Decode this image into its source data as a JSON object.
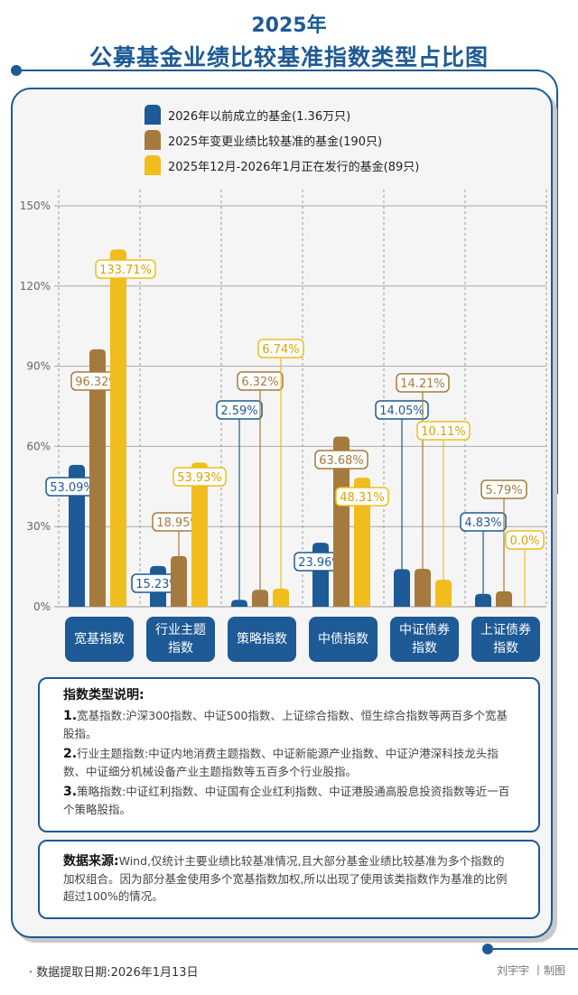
{
  "title": {
    "line1": "2025年",
    "line2": "公募基金业绩比较基准指数类型占比图"
  },
  "chart_data": {
    "type": "bar",
    "categories": [
      "宽基指数",
      "行业主题指数",
      "策略指数",
      "中债指数",
      "中证债券指数",
      "上证债券指数"
    ],
    "series": [
      {
        "name": "2026年以前成立的基金(1.36万只)",
        "color": "#1d5a96",
        "values": [
          53.09,
          15.23,
          2.59,
          23.96,
          14.05,
          4.83
        ],
        "labels": [
          "53.09%",
          "15.23%",
          "2.59%",
          "23.96%",
          "14.05%",
          "4.83%"
        ]
      },
      {
        "name": "2025年变更业绩比较基准的基金(190只)",
        "color": "#a57a3e",
        "values": [
          96.32,
          18.95,
          6.32,
          63.68,
          14.21,
          5.79
        ],
        "labels": [
          "96.32%",
          "18.95%",
          "6.32%",
          "63.68%",
          "14.21%",
          "5.79%"
        ]
      },
      {
        "name": "2025年12月-2026年1月正在发行的基金(89只)",
        "color": "#f0bd1c",
        "values": [
          133.71,
          53.93,
          6.74,
          48.31,
          10.11,
          0.0
        ],
        "labels": [
          "133.71%",
          "53.93%",
          "6.74%",
          "48.31%",
          "10.11%",
          "0.0%"
        ]
      }
    ],
    "yticks": [
      "0%",
      "30%",
      "60%",
      "90%",
      "120%",
      "150%"
    ],
    "ylim": [
      0,
      150
    ],
    "grid": true,
    "legend": "top"
  },
  "notes": {
    "heading": "指数类型说明:",
    "items": [
      {
        "num": "1.",
        "text": "宽基指数:沪深300指数、中证500指数、上证综合指数、恒生综合指数等两百多个宽基股指。"
      },
      {
        "num": "2.",
        "text": "行业主题指数:中证内地消费主题指数、中证新能源产业指数、中证沪港深科技龙头指数、中证细分机械设备产业主题指数等五百多个行业股指。"
      },
      {
        "num": "3.",
        "text": "策略指数:中证红利指数、中证国有企业红利指数、中证港股通高股息投资指数等近一百个策略股指。"
      }
    ]
  },
  "source": {
    "label": "数据来源:",
    "text": "Wind,仅统计主要业绩比较基准情况,且大部分基金业绩比较基准为多个指数的加权组合。因为部分基金使用多个宽基指数加权,所以出现了使用该类指数作为基准的比例超过100%的情况。"
  },
  "footer": {
    "date": "· 数据提取日期:2026年1月13日",
    "credit": "刘宇宇 丨制图"
  }
}
